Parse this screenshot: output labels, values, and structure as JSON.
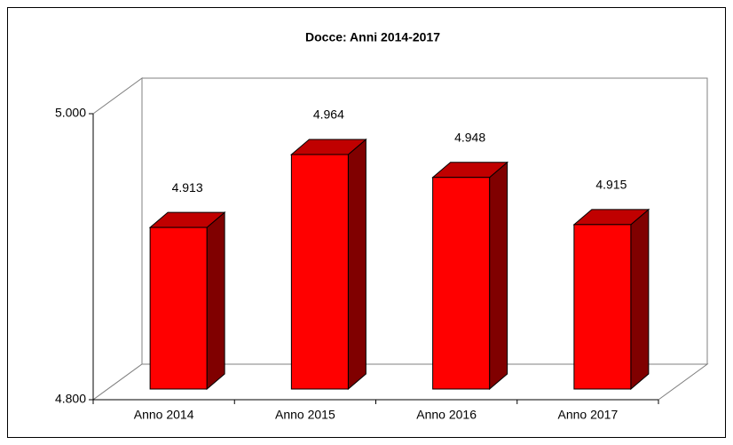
{
  "chart_data": {
    "type": "bar3d",
    "title": "Docce: Anni 2014-2017",
    "categories": [
      "Anno 2014",
      "Anno 2015",
      "Anno 2016",
      "Anno 2017"
    ],
    "values": [
      4913,
      4964,
      4948,
      4915
    ],
    "value_labels": [
      "4.913",
      "4.964",
      "4.948",
      "4.915"
    ],
    "color": "#ff0000",
    "ylim": [
      4800,
      5000
    ],
    "yticks": [
      {
        "value": 4800,
        "label": "4.800"
      },
      {
        "value": 5000,
        "label": "5.000"
      }
    ]
  }
}
